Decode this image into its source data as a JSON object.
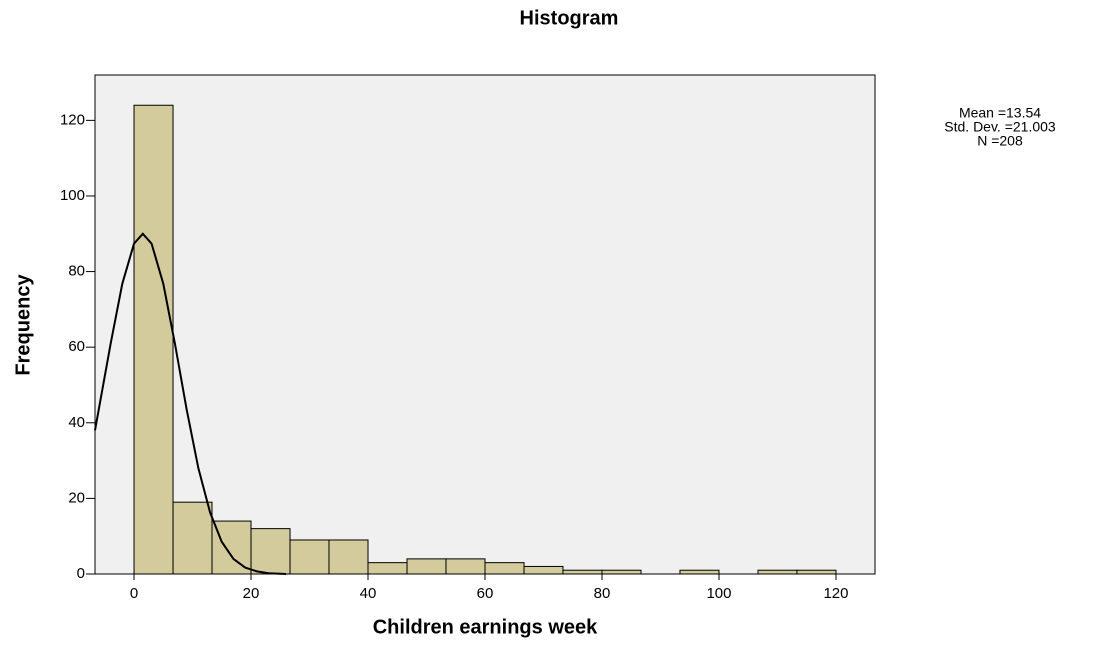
{
  "chart_data": {
    "type": "histogram",
    "title": "Histogram",
    "xlabel": "Children earnings week",
    "ylabel": "Frequency",
    "bins": [
      0,
      6.67,
      13.33,
      20,
      26.67,
      33.33,
      40,
      46.67,
      53.33,
      60,
      66.67,
      73.33,
      80,
      86.67,
      93.33,
      100,
      106.67,
      113.33,
      120
    ],
    "values": [
      124,
      19,
      14,
      12,
      9,
      9,
      3,
      4,
      4,
      3,
      2,
      1,
      1,
      0,
      1,
      0,
      1,
      1
    ],
    "color": "#d3cb9c",
    "curve": {
      "x": [
        -6.67,
        -4,
        -2,
        0,
        1.5,
        3,
        5,
        7,
        9,
        11,
        13,
        15,
        17,
        19,
        21,
        23,
        26
      ],
      "values": [
        38,
        60.9,
        76.8,
        87.4,
        90,
        87.4,
        76.8,
        60.9,
        43.5,
        28,
        16.3,
        8.5,
        4,
        1.7,
        0.7,
        0.2,
        0
      ],
      "color": "#000000"
    },
    "xlim": [
      -6.67,
      126.67
    ],
    "ylim": [
      0,
      132
    ],
    "xticks": [
      0,
      20,
      40,
      60,
      80,
      100,
      120
    ],
    "yticks": [
      0,
      20,
      40,
      60,
      80,
      100,
      120
    ],
    "annotations": [
      "Mean =13.54",
      "Std. Dev. =21.003",
      "N =208"
    ]
  }
}
